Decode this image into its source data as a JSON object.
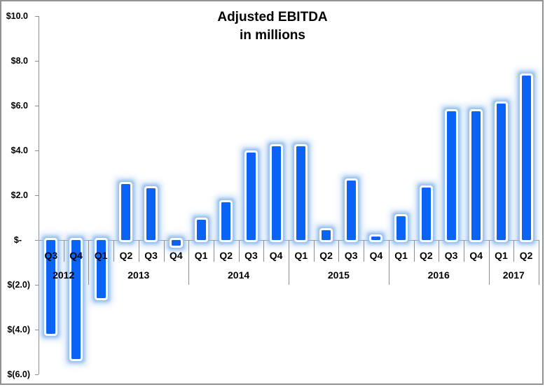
{
  "title": {
    "line1": "Adjusted EBITDA",
    "line2": "in millions"
  },
  "colors": {
    "bar_fill": "#0b63f6",
    "bar_white_ring": "#ffffff",
    "bar_glow": "#9cc3ee",
    "axis_line": "#8e8e8e",
    "frame_border": "#919191",
    "text": "#000000",
    "background": "#ffffff"
  },
  "y_axis": {
    "tick_labels": [
      "$10.0",
      "$8.0",
      "$6.0",
      "$4.0",
      "$2.0",
      "$-",
      "$(2.0)",
      "$(4.0)",
      "$(6.0)"
    ],
    "tick_values": [
      10,
      8,
      6,
      4,
      2,
      0,
      -2,
      -4,
      -6
    ]
  },
  "chart_data": {
    "type": "bar",
    "title": "Adjusted EBITDA",
    "subtitle": "in millions",
    "xlabel": "",
    "ylabel": "",
    "ylim": [
      -6,
      10
    ],
    "y_tick_step": 2,
    "grid": false,
    "legend": false,
    "categories": [
      "Q3 2012",
      "Q4 2012",
      "Q1 2013",
      "Q2 2013",
      "Q3 2013",
      "Q4 2013",
      "Q1 2014",
      "Q2 2014",
      "Q3 2014",
      "Q4 2014",
      "Q1 2015",
      "Q2 2015",
      "Q3 2015",
      "Q4 2015",
      "Q1 2016",
      "Q2 2016",
      "Q3 2016",
      "Q4 2016",
      "Q1 2017",
      "Q2 2017"
    ],
    "values": [
      -4.2,
      -5.3,
      -2.6,
      2.5,
      2.3,
      -0.25,
      0.9,
      1.7,
      3.9,
      4.2,
      4.2,
      0.45,
      2.65,
      0.15,
      1.05,
      2.35,
      5.75,
      5.75,
      6.1,
      7.35
    ],
    "groups": [
      {
        "year": "2012",
        "quarters": [
          "Q3",
          "Q4"
        ],
        "values": [
          -4.2,
          -5.3
        ]
      },
      {
        "year": "2013",
        "quarters": [
          "Q1",
          "Q2",
          "Q3",
          "Q4"
        ],
        "values": [
          -2.6,
          2.5,
          2.3,
          -0.25
        ]
      },
      {
        "year": "2014",
        "quarters": [
          "Q1",
          "Q2",
          "Q3",
          "Q4"
        ],
        "values": [
          0.9,
          1.7,
          3.9,
          4.2
        ]
      },
      {
        "year": "2015",
        "quarters": [
          "Q1",
          "Q2",
          "Q3",
          "Q4"
        ],
        "values": [
          4.2,
          0.45,
          2.65,
          0.15
        ]
      },
      {
        "year": "2016",
        "quarters": [
          "Q1",
          "Q2",
          "Q3",
          "Q4"
        ],
        "values": [
          1.05,
          2.35,
          5.75,
          5.75
        ]
      },
      {
        "year": "2017",
        "quarters": [
          "Q1",
          "Q2"
        ],
        "values": [
          6.1,
          7.35
        ]
      }
    ]
  }
}
